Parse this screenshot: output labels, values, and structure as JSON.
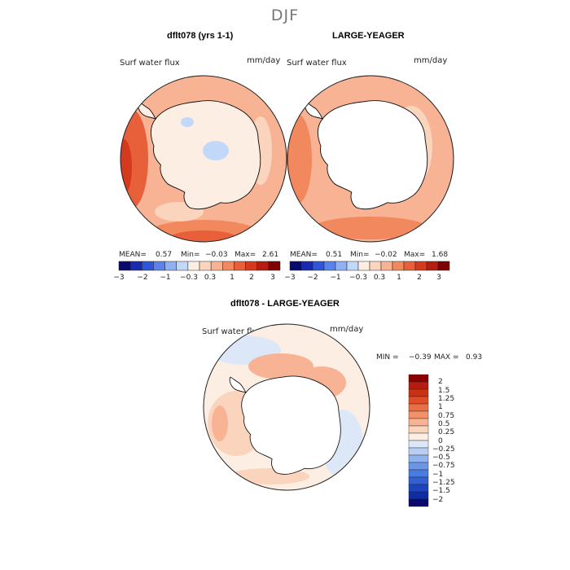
{
  "figure": {
    "title": "DJF"
  },
  "panels": [
    {
      "title": "dflt078 (yrs 1-1)",
      "variable": "Surf water flux",
      "units": "mm/day",
      "stats": {
        "mean_label": "MEAN=",
        "mean": "0.57",
        "min_label": "Min=",
        "min": "−0.03",
        "max_label": "Max=",
        "max": "2.61"
      }
    },
    {
      "title": "LARGE-YEAGER",
      "variable": "Surf water flux",
      "units": "mm/day",
      "stats": {
        "mean_label": "MEAN=",
        "mean": "0.51",
        "min_label": "Min=",
        "min": "−0.02",
        "max_label": "Max=",
        "max": "1.68"
      }
    },
    {
      "title": "dflt078 - LARGE-YEAGER",
      "variable": "Surf water flux",
      "units": "mm/day",
      "stats": {
        "min_label": "MIN =",
        "min": "−0.39",
        "max_label": "MAX =",
        "max": "0.93"
      }
    }
  ],
  "colorbar_horizontal": {
    "colors": [
      "#0a0a6e",
      "#1a2ab0",
      "#2f55d8",
      "#5a82ea",
      "#8fb0f2",
      "#c2d8f8",
      "#fdeee4",
      "#fbd4bd",
      "#f8b394",
      "#f2895e",
      "#e8603a",
      "#d63a1e",
      "#b51d10",
      "#800000"
    ],
    "ticks": [
      "−3",
      "−2",
      "−1",
      "−0.3",
      "0.3",
      "1",
      "2",
      "3"
    ]
  },
  "colorbar_vertical": {
    "colors": [
      "#8b0000",
      "#b51d10",
      "#cc2f12",
      "#e04c25",
      "#ec6f44",
      "#f39266",
      "#f8b394",
      "#fbd4bd",
      "#fdeee4",
      "#dce8f8",
      "#b8cff3",
      "#90b3ee",
      "#6b96e8",
      "#4a7be0",
      "#3060d2",
      "#1c45bd",
      "#0f2da3",
      "#0a0a6e"
    ],
    "labels": [
      "2",
      "1.5",
      "1.25",
      "1",
      "0.75",
      "0.5",
      "0.25",
      "0",
      "−0.25",
      "−0.5",
      "−0.75",
      "−1",
      "−1.25",
      "−1.5",
      "−2"
    ]
  },
  "chart_data": [
    {
      "type": "heatmap",
      "title": "dflt078 (yrs 1-1)",
      "subtitle": "Surf water flux",
      "units": "mm/day",
      "projection": "south polar stereographic",
      "mean": 0.57,
      "min": -0.03,
      "max": 2.61,
      "color_levels": [
        -3,
        -2,
        -1,
        -0.3,
        0.3,
        1,
        2,
        3
      ]
    },
    {
      "type": "heatmap",
      "title": "LARGE-YEAGER",
      "subtitle": "Surf water flux",
      "units": "mm/day",
      "projection": "south polar stereographic",
      "mean": 0.51,
      "min": -0.02,
      "max": 1.68,
      "color_levels": [
        -3,
        -2,
        -1,
        -0.3,
        0.3,
        1,
        2,
        3
      ]
    },
    {
      "type": "heatmap",
      "title": "dflt078 - LARGE-YEAGER",
      "subtitle": "Surf water flux",
      "units": "mm/day",
      "projection": "south polar stereographic",
      "min": -0.39,
      "max": 0.93,
      "color_levels": [
        -2,
        -1.5,
        -1.25,
        -1,
        -0.75,
        -0.5,
        -0.25,
        0,
        0.25,
        0.5,
        0.75,
        1,
        1.25,
        1.5,
        2
      ]
    }
  ]
}
